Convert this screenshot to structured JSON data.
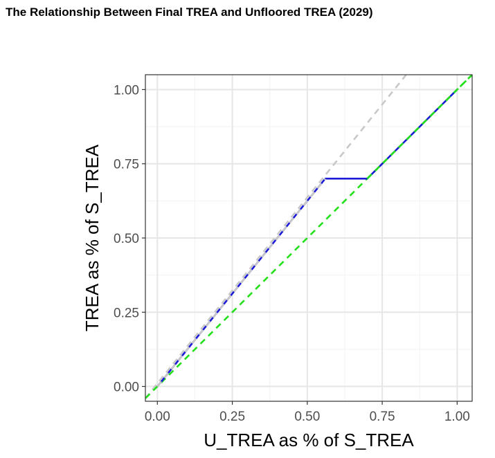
{
  "chart_data": {
    "type": "line",
    "title": "The Relationship Between Final TREA and Unfloored TREA (2029)",
    "xlabel": "U_TREA as % of S_TREA",
    "ylabel": "TREA as % of S_TREA",
    "xlim": [
      -0.04,
      1.05
    ],
    "ylim": [
      -0.05,
      1.05
    ],
    "x_ticks": [
      0.0,
      0.25,
      0.5,
      0.75,
      1.0
    ],
    "y_ticks": [
      0.0,
      0.25,
      0.5,
      0.75,
      1.0
    ],
    "x_tick_labels": [
      "0.00",
      "0.25",
      "0.50",
      "0.75",
      "1.00"
    ],
    "y_tick_labels": [
      "0.00",
      "0.25",
      "0.50",
      "0.75",
      "1.00"
    ],
    "grid": true,
    "legend": "none",
    "series": [
      {
        "style": "dashed",
        "color": "#c8c8c8",
        "x": [
          -0.04,
          0.83
        ],
        "y": [
          -0.04,
          1.05
        ]
      },
      {
        "style": "dashed",
        "color": "#22e01a",
        "x": [
          -0.04,
          1.05
        ],
        "y": [
          -0.04,
          1.05
        ]
      },
      {
        "style": "solid",
        "color": "#1a1ad8",
        "x": [
          0.0,
          0.56,
          0.7,
          1.0
        ],
        "y": [
          0.0,
          0.7,
          0.7,
          1.0
        ]
      }
    ]
  }
}
